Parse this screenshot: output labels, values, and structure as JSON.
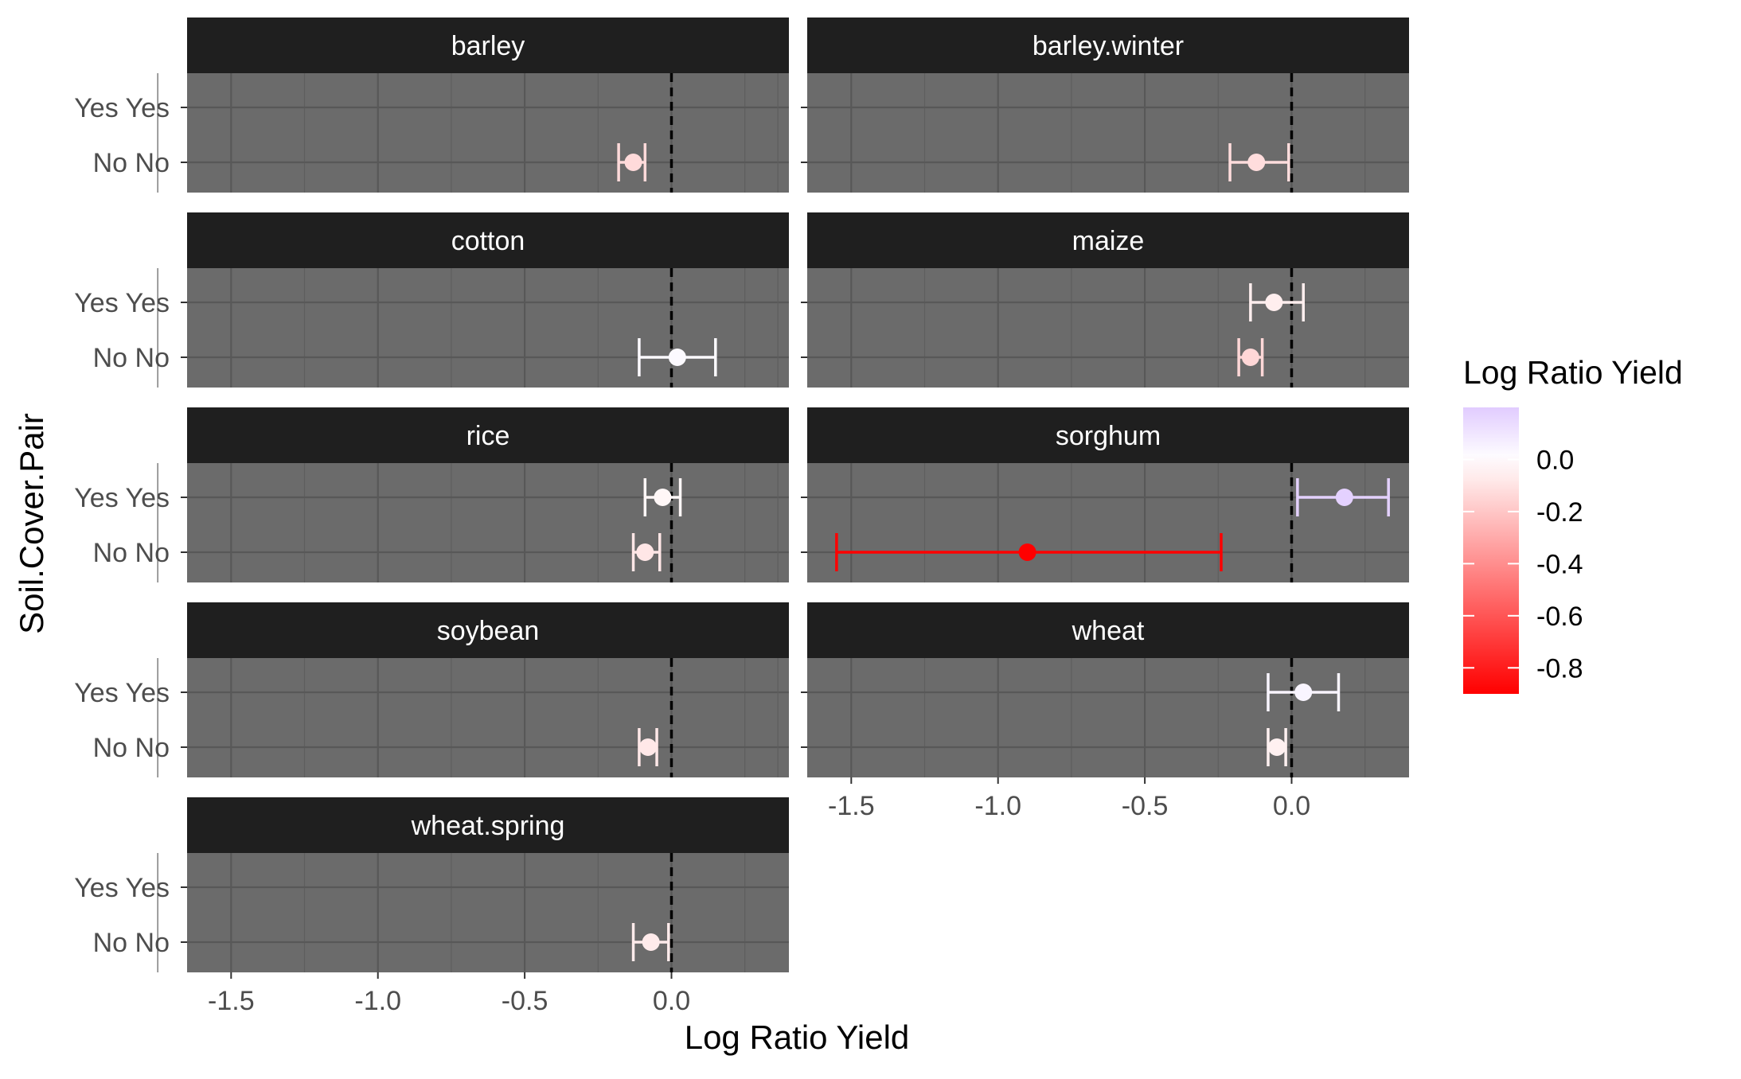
{
  "chart_data": {
    "type": "scatter",
    "subtype": "faceted-pointrange",
    "title": "",
    "xlabel": "Log Ratio Yield",
    "ylabel": "Soil.Cover.Pair",
    "xlim": [
      -1.65,
      0.4
    ],
    "x_ticks": [
      -1.5,
      -1.0,
      -0.5,
      0.0
    ],
    "x_tick_labels": [
      "-1.5",
      "-1.0",
      "-0.5",
      "0.0"
    ],
    "y_categories": [
      "Yes Yes",
      "No No"
    ],
    "reference_line": {
      "x": 0.0,
      "style": "dashed",
      "color": "#000000"
    },
    "panel_background": "#6b6b6b",
    "strip_background": "#1f1f1f",
    "strip_text_color": "#ffffff",
    "grid": true,
    "legend": {
      "title": "Log Ratio Yield",
      "placement": "right",
      "type": "colorbar",
      "range": [
        -0.9,
        0.2
      ],
      "ticks": [
        0.0,
        -0.2,
        -0.4,
        -0.6,
        -0.8
      ],
      "tick_labels": [
        "0.0",
        "-0.2",
        "-0.4",
        "-0.6",
        "-0.8"
      ],
      "color_low": "#ff0000",
      "color_mid": "#ffffff",
      "color_high": "#e1ccff"
    },
    "facets": [
      {
        "name": "barley",
        "points": [
          {
            "y": "No No",
            "x": -0.13,
            "lo": -0.18,
            "hi": -0.09
          }
        ]
      },
      {
        "name": "barley.winter",
        "points": [
          {
            "y": "No No",
            "x": -0.12,
            "lo": -0.21,
            "hi": -0.01
          }
        ]
      },
      {
        "name": "cotton",
        "points": [
          {
            "y": "No No",
            "x": 0.02,
            "lo": -0.11,
            "hi": 0.15
          }
        ]
      },
      {
        "name": "maize",
        "points": [
          {
            "y": "Yes Yes",
            "x": -0.06,
            "lo": -0.14,
            "hi": 0.04
          },
          {
            "y": "No No",
            "x": -0.14,
            "lo": -0.18,
            "hi": -0.1
          }
        ]
      },
      {
        "name": "rice",
        "points": [
          {
            "y": "Yes Yes",
            "x": -0.03,
            "lo": -0.09,
            "hi": 0.03
          },
          {
            "y": "No No",
            "x": -0.09,
            "lo": -0.13,
            "hi": -0.04
          }
        ]
      },
      {
        "name": "sorghum",
        "points": [
          {
            "y": "Yes Yes",
            "x": 0.18,
            "lo": 0.02,
            "hi": 0.33
          },
          {
            "y": "No No",
            "x": -0.9,
            "lo": -1.55,
            "hi": -0.24
          }
        ]
      },
      {
        "name": "soybean",
        "points": [
          {
            "y": "No No",
            "x": -0.08,
            "lo": -0.11,
            "hi": -0.05
          }
        ]
      },
      {
        "name": "wheat",
        "points": [
          {
            "y": "Yes Yes",
            "x": 0.04,
            "lo": -0.08,
            "hi": 0.16
          },
          {
            "y": "No No",
            "x": -0.05,
            "lo": -0.08,
            "hi": -0.02
          }
        ]
      },
      {
        "name": "wheat.spring",
        "points": [
          {
            "y": "No No",
            "x": -0.07,
            "lo": -0.13,
            "hi": -0.01
          }
        ]
      }
    ]
  }
}
